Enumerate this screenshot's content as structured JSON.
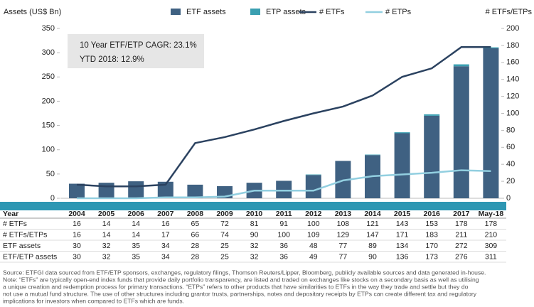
{
  "chart_data": {
    "type": "bar",
    "y_label": "Assets (US$ Bn)",
    "y2_label": "# ETFs/ETPs",
    "categories": [
      "2004",
      "2005",
      "2006",
      "2007",
      "2008",
      "2009",
      "2010",
      "2011",
      "2012",
      "2013",
      "2014",
      "2015",
      "2016",
      "2017",
      "May-18"
    ],
    "series": [
      {
        "name": "ETF assets",
        "type": "bar",
        "color": "#3f6182",
        "values": [
          30,
          32,
          35,
          34,
          28,
          25,
          32,
          36,
          48,
          77,
          89,
          134,
          170,
          272,
          309
        ]
      },
      {
        "name": "ETP assets",
        "type": "bar",
        "color": "#3a9fb1",
        "values": [
          0,
          0,
          0,
          0,
          0,
          0,
          0,
          0,
          1,
          0,
          1,
          2,
          3,
          4,
          2
        ]
      },
      {
        "name": "# ETFs",
        "type": "line",
        "axis": "y2",
        "color": "#2b4260",
        "values": [
          16,
          14,
          14,
          16,
          65,
          72,
          81,
          91,
          100,
          108,
          121,
          143,
          153,
          178,
          178
        ]
      },
      {
        "name": "# ETPs",
        "type": "line",
        "axis": "y2",
        "color": "#92cfe0",
        "values": [
          0,
          0,
          0,
          1,
          1,
          2,
          9,
          9,
          9,
          21,
          26,
          28,
          30,
          33,
          32
        ]
      }
    ],
    "ylim": [
      0,
      350
    ],
    "yticks": [
      0,
      50,
      100,
      150,
      200,
      250,
      300,
      350
    ],
    "y2lim": [
      0,
      200
    ],
    "y2ticks": [
      0,
      20,
      40,
      60,
      80,
      100,
      120,
      140,
      160,
      180,
      200
    ],
    "annotations": [
      "10 Year ETF/ETP CAGR: 23.1%",
      "YTD 2018: 12.9%"
    ]
  },
  "table": {
    "header": "Year",
    "rows": [
      {
        "label": "# ETFs/ETPs",
        "values": [
          16,
          14,
          14,
          17,
          66,
          74,
          90,
          100,
          109,
          129,
          147,
          171,
          183,
          211,
          210
        ]
      },
      {
        "label": "ETF/ETP assets",
        "values": [
          30,
          32,
          35,
          34,
          28,
          25,
          32,
          36,
          49,
          77,
          90,
          136,
          173,
          276,
          311
        ]
      }
    ]
  },
  "source": [
    "Source: ETFGI data sourced from ETF/ETP sponsors, exchanges, regulatory filings, Thomson Reuters/Lipper, Bloomberg, publicly available sources and data generated in-house.",
    "Note: “ETFs” are typically open-end index funds that provide daily portfolio transparency, are listed and traded on exchanges like stocks on a secondary basis as well as utilising",
    "a unique creation and redemption process for primary transactions. “ETPs” refers to other products that have similarities to ETFs in the way they trade and settle but they do",
    "not use a mutual fund structure. The use of other structures including grantor trusts, partnerships, notes and depositary receipts by ETPs can create different tax and regulatory",
    "implications for investors when compared to ETFs which are funds."
  ]
}
